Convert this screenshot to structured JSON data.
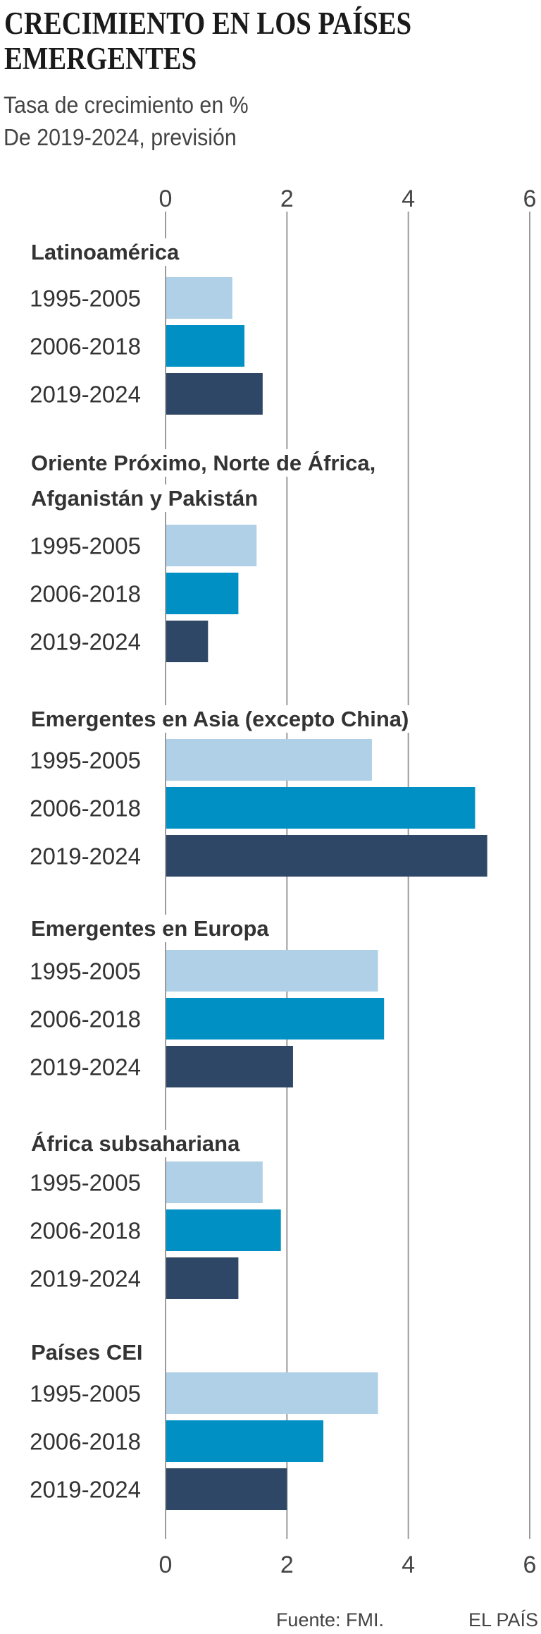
{
  "header": {
    "title_line1": "CRECIMIENTO EN LOS PAÍSES",
    "title_line2": "EMERGENTES",
    "subtitle_line1": "Tasa de crecimiento en %",
    "subtitle_line2": "De 2019-2024, previsión"
  },
  "colors": {
    "1995-2005": "#afd0e6",
    "2006-2018": "#0090c4",
    "2019-2024": "#2f4766",
    "grid": "#9a9a9a"
  },
  "chart_data": {
    "type": "bar",
    "orientation": "horizontal",
    "title": "CRECIMIENTO EN LOS PAÍSES EMERGENTES",
    "subtitle": "Tasa de crecimiento en % — De 2019-2024, previsión",
    "xlabel": "",
    "ylabel": "",
    "xlim": [
      0,
      6
    ],
    "xticks": [
      0,
      2,
      4,
      6
    ],
    "grid": true,
    "series_names": [
      "1995-2005",
      "2006-2018",
      "2019-2024"
    ],
    "groups": [
      {
        "name": [
          "Latinoamérica"
        ],
        "values": [
          1.1,
          1.3,
          1.6
        ]
      },
      {
        "name": [
          "Oriente Próximo, Norte de África,",
          "Afganistán y Pakistán"
        ],
        "values": [
          1.5,
          1.2,
          0.7
        ]
      },
      {
        "name": [
          "Emergentes en Asia (excepto China)"
        ],
        "values": [
          3.4,
          5.1,
          5.3
        ]
      },
      {
        "name": [
          "Emergentes en Europa"
        ],
        "values": [
          3.5,
          3.6,
          2.1
        ]
      },
      {
        "name": [
          "África subsahariana"
        ],
        "values": [
          1.6,
          1.9,
          1.2
        ]
      },
      {
        "name": [
          "Países CEI"
        ],
        "values": [
          3.5,
          2.6,
          2.0
        ]
      }
    ]
  },
  "footer": {
    "source": "Fuente: FMI.",
    "brand": "EL PAÍS"
  }
}
